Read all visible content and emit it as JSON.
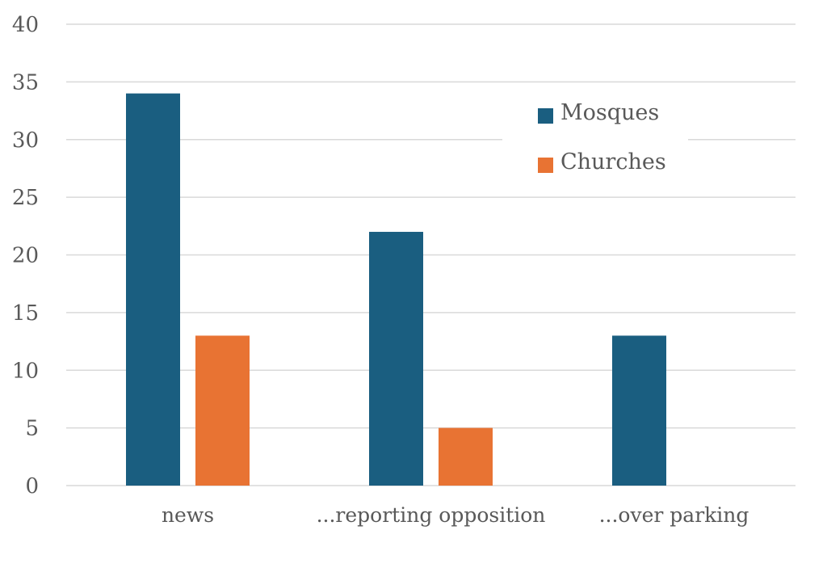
{
  "chart_data": {
    "type": "bar",
    "categories": [
      "news",
      "...reporting opposition",
      "...over parking"
    ],
    "series": [
      {
        "name": "Mosques",
        "values": [
          34,
          22,
          13
        ],
        "color": "#1a5e80"
      },
      {
        "name": "Churches",
        "values": [
          13,
          5,
          0
        ],
        "color": "#e87333"
      }
    ],
    "ylim": [
      0,
      40
    ],
    "yticks": [
      0,
      5,
      10,
      15,
      20,
      25,
      30,
      35,
      40
    ],
    "grid": true,
    "legend_position": "top-right",
    "gridline_color": "#d9d9d9"
  }
}
